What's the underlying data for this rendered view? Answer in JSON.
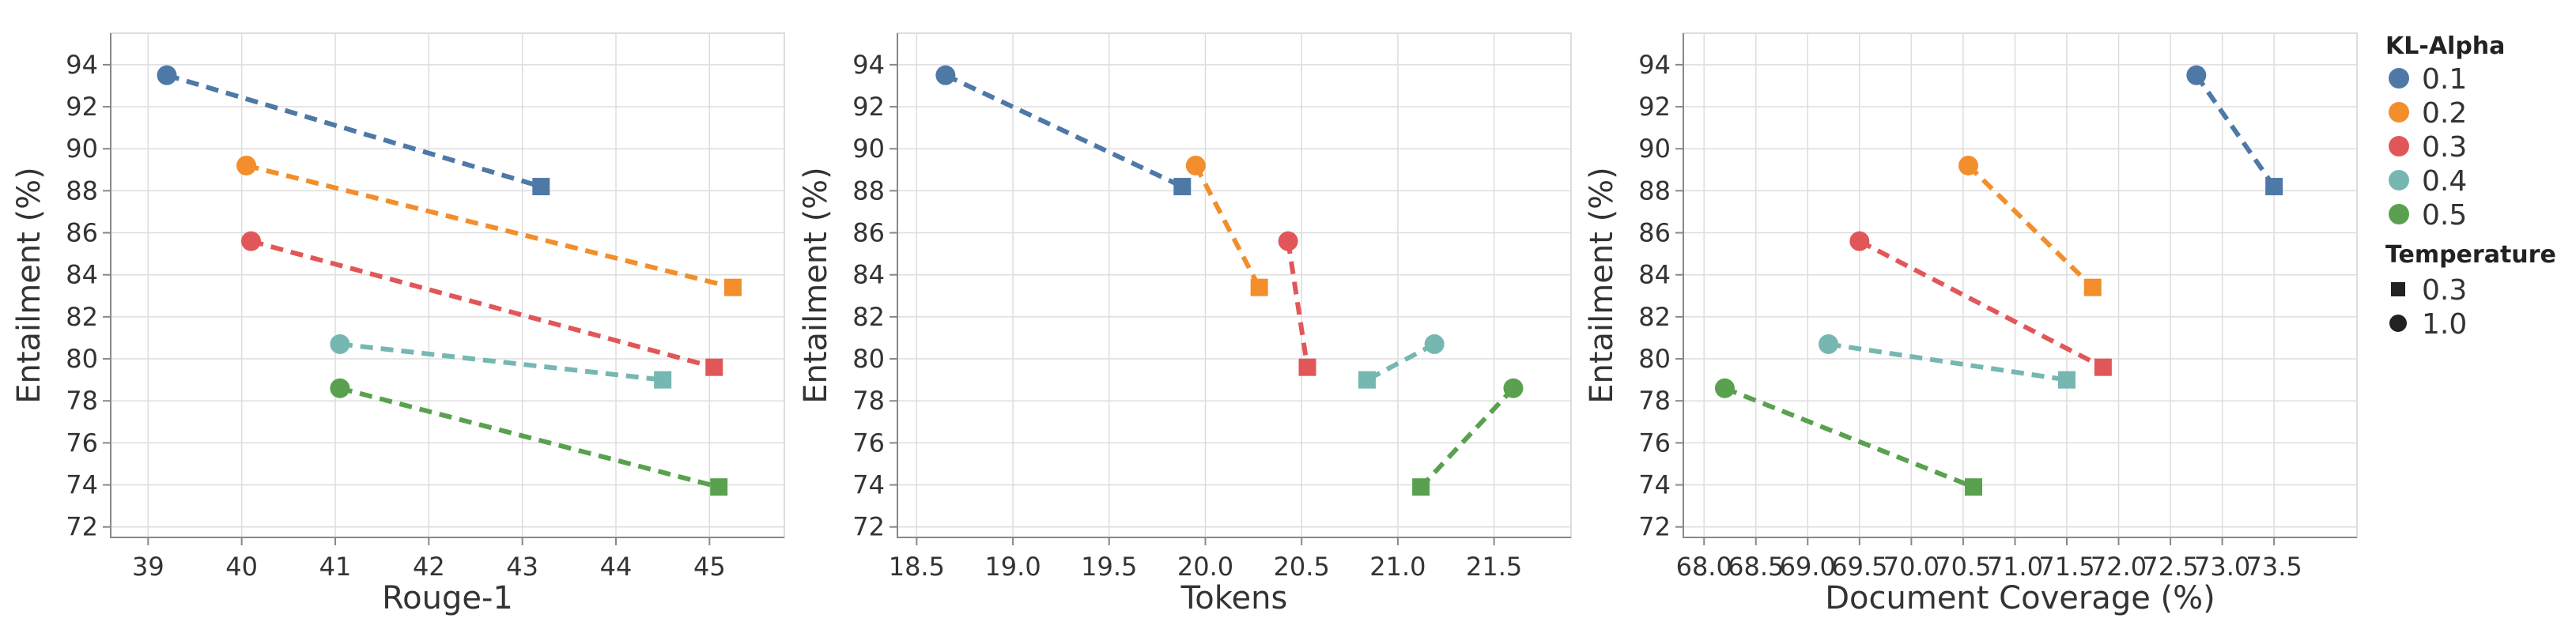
{
  "legend": {
    "kl_title": "KL-Alpha",
    "temp_title": "Temperature",
    "kl_items": [
      {
        "label": "0.1",
        "color": "#4e79a7"
      },
      {
        "label": "0.2",
        "color": "#f28e2b"
      },
      {
        "label": "0.3",
        "color": "#e15759"
      },
      {
        "label": "0.4",
        "color": "#76b7b2"
      },
      {
        "label": "0.5",
        "color": "#59a14f"
      }
    ],
    "temp_items": [
      {
        "label": "0.3",
        "shape": "square"
      },
      {
        "label": "1.0",
        "shape": "circle"
      }
    ]
  },
  "chart_data": [
    {
      "type": "scatter",
      "xlabel": "Rouge-1",
      "ylabel": "Entailment (%)",
      "xlim": [
        38.6,
        45.8
      ],
      "ylim": [
        71.5,
        95.5
      ],
      "xticks": [
        39,
        40,
        41,
        42,
        43,
        44,
        45
      ],
      "xtick_labels": [
        "39",
        "40",
        "41",
        "42",
        "43",
        "44",
        "45"
      ],
      "yticks": [
        72,
        74,
        76,
        78,
        80,
        82,
        84,
        86,
        88,
        90,
        92,
        94
      ],
      "grid": true,
      "series": [
        {
          "kl": "0.1",
          "color": "#4e79a7",
          "points": [
            {
              "temperature": "1.0",
              "x": 39.2,
              "y": 93.5
            },
            {
              "temperature": "0.3",
              "x": 43.2,
              "y": 88.2
            }
          ]
        },
        {
          "kl": "0.2",
          "color": "#f28e2b",
          "points": [
            {
              "temperature": "1.0",
              "x": 40.05,
              "y": 89.2
            },
            {
              "temperature": "0.3",
              "x": 45.25,
              "y": 83.4
            }
          ]
        },
        {
          "kl": "0.3",
          "color": "#e15759",
          "points": [
            {
              "temperature": "1.0",
              "x": 40.1,
              "y": 85.6
            },
            {
              "temperature": "0.3",
              "x": 45.05,
              "y": 79.6
            }
          ]
        },
        {
          "kl": "0.4",
          "color": "#76b7b2",
          "points": [
            {
              "temperature": "1.0",
              "x": 41.05,
              "y": 80.7
            },
            {
              "temperature": "0.3",
              "x": 44.5,
              "y": 79.0
            }
          ]
        },
        {
          "kl": "0.5",
          "color": "#59a14f",
          "points": [
            {
              "temperature": "1.0",
              "x": 41.05,
              "y": 78.6
            },
            {
              "temperature": "0.3",
              "x": 45.1,
              "y": 73.9
            }
          ]
        }
      ]
    },
    {
      "type": "scatter",
      "xlabel": "Tokens",
      "ylabel": "Entailment (%)",
      "xlim": [
        18.4,
        21.9
      ],
      "ylim": [
        71.5,
        95.5
      ],
      "xticks": [
        18.5,
        19.0,
        19.5,
        20.0,
        20.5,
        21.0,
        21.5
      ],
      "xtick_labels": [
        "18.5",
        "19.0",
        "19.5",
        "20.0",
        "20.5",
        "21.0",
        "21.5"
      ],
      "yticks": [
        72,
        74,
        76,
        78,
        80,
        82,
        84,
        86,
        88,
        90,
        92,
        94
      ],
      "grid": true,
      "series": [
        {
          "kl": "0.1",
          "color": "#4e79a7",
          "points": [
            {
              "temperature": "1.0",
              "x": 18.65,
              "y": 93.5
            },
            {
              "temperature": "0.3",
              "x": 19.88,
              "y": 88.2
            }
          ]
        },
        {
          "kl": "0.2",
          "color": "#f28e2b",
          "points": [
            {
              "temperature": "1.0",
              "x": 19.95,
              "y": 89.2
            },
            {
              "temperature": "0.3",
              "x": 20.28,
              "y": 83.4
            }
          ]
        },
        {
          "kl": "0.3",
          "color": "#e15759",
          "points": [
            {
              "temperature": "1.0",
              "x": 20.43,
              "y": 85.6
            },
            {
              "temperature": "0.3",
              "x": 20.53,
              "y": 79.6
            }
          ]
        },
        {
          "kl": "0.4",
          "color": "#76b7b2",
          "points": [
            {
              "temperature": "1.0",
              "x": 21.19,
              "y": 80.7
            },
            {
              "temperature": "0.3",
              "x": 20.84,
              "y": 79.0
            }
          ]
        },
        {
          "kl": "0.5",
          "color": "#59a14f",
          "points": [
            {
              "temperature": "1.0",
              "x": 21.6,
              "y": 78.6
            },
            {
              "temperature": "0.3",
              "x": 21.12,
              "y": 73.9
            }
          ]
        }
      ]
    },
    {
      "type": "scatter",
      "xlabel": "Document Coverage (%)",
      "ylabel": "Entailment (%)",
      "xlim": [
        67.8,
        74.3
      ],
      "ylim": [
        71.5,
        95.5
      ],
      "xticks": [
        68.0,
        68.5,
        69.0,
        69.5,
        70.0,
        70.5,
        71.0,
        71.5,
        72.0,
        72.5,
        73.0,
        73.5
      ],
      "xtick_labels": [
        "68.0",
        "68.5",
        "69.0",
        "69.5",
        "70.0",
        "70.5",
        "71.0",
        "71.5",
        "72.0",
        "72.5",
        "73.0",
        "73.5"
      ],
      "yticks": [
        72,
        74,
        76,
        78,
        80,
        82,
        84,
        86,
        88,
        90,
        92,
        94
      ],
      "grid": true,
      "series": [
        {
          "kl": "0.1",
          "color": "#4e79a7",
          "points": [
            {
              "temperature": "1.0",
              "x": 72.75,
              "y": 93.5
            },
            {
              "temperature": "0.3",
              "x": 73.5,
              "y": 88.2
            }
          ]
        },
        {
          "kl": "0.2",
          "color": "#f28e2b",
          "points": [
            {
              "temperature": "1.0",
              "x": 70.55,
              "y": 89.2
            },
            {
              "temperature": "0.3",
              "x": 71.75,
              "y": 83.4
            }
          ]
        },
        {
          "kl": "0.3",
          "color": "#e15759",
          "points": [
            {
              "temperature": "1.0",
              "x": 69.5,
              "y": 85.6
            },
            {
              "temperature": "0.3",
              "x": 71.85,
              "y": 79.6
            }
          ]
        },
        {
          "kl": "0.4",
          "color": "#76b7b2",
          "points": [
            {
              "temperature": "1.0",
              "x": 69.2,
              "y": 80.7
            },
            {
              "temperature": "0.3",
              "x": 71.5,
              "y": 79.0
            }
          ]
        },
        {
          "kl": "0.5",
          "color": "#59a14f",
          "points": [
            {
              "temperature": "1.0",
              "x": 68.2,
              "y": 78.6
            },
            {
              "temperature": "0.3",
              "x": 70.6,
              "y": 73.9
            }
          ]
        }
      ]
    }
  ]
}
